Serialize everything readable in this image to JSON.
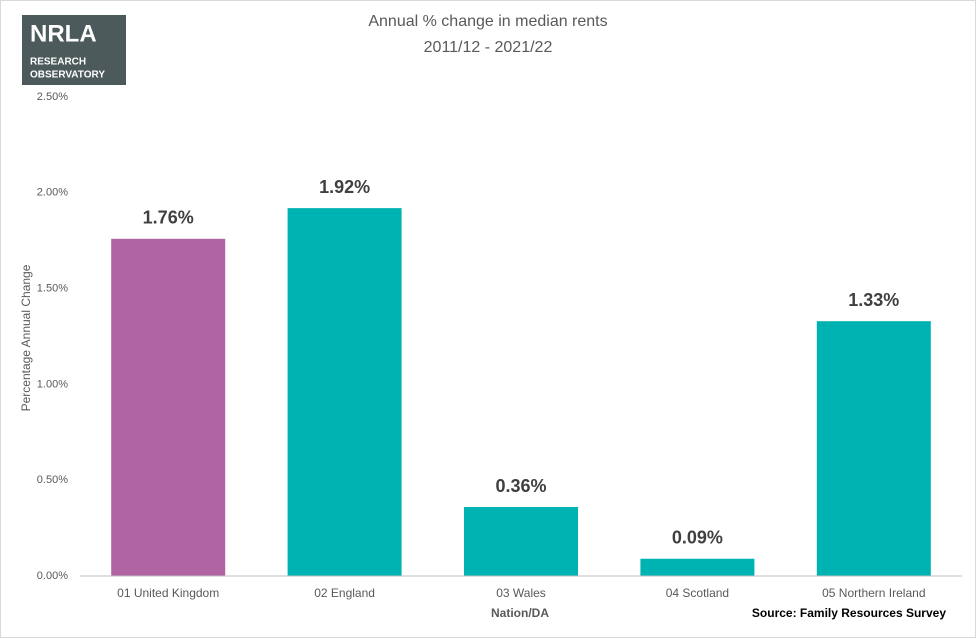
{
  "logo": {
    "title": "NRLA",
    "lines": [
      "RESEARCH",
      "OBSERVATORY"
    ]
  },
  "chart_data": {
    "type": "bar",
    "title": "Annual % change in median rents",
    "subtitle": "2011/12 - 2021/22",
    "x_label": "Nation/DA",
    "y_label": "Percentage Annual Change",
    "source": "Source: Family Resources Survey",
    "categories": [
      "01 United Kingdom",
      "02 England",
      "03 Wales",
      "04 Scotland",
      "05 Northern Ireland"
    ],
    "values": [
      1.76,
      1.92,
      0.36,
      0.09,
      1.33
    ],
    "value_labels": [
      "1.76%",
      "1.92%",
      "0.36%",
      "0.09%",
      "1.33%"
    ],
    "colors": [
      "#b064a4",
      "#00b3b3",
      "#00b3b3",
      "#00b3b3",
      "#00b3b3"
    ],
    "ylim": [
      0,
      2.5
    ],
    "yticks": [
      {
        "value": 0,
        "label": "0.00%"
      },
      {
        "value": 0.5,
        "label": "0.50%"
      },
      {
        "value": 1,
        "label": "1.00%"
      },
      {
        "value": 1.5,
        "label": "1.50%"
      },
      {
        "value": 2,
        "label": "2.00%"
      },
      {
        "value": 2.5,
        "label": "2.50%"
      }
    ],
    "grid": false
  }
}
